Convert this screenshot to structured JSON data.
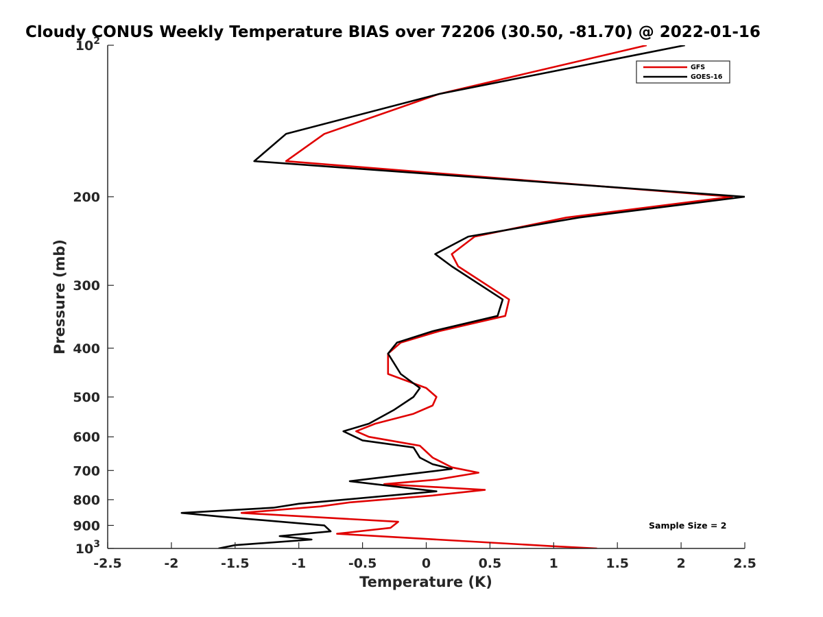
{
  "chart_data": {
    "type": "line",
    "title": "Cloudy CONUS Weekly Temperature BIAS over 72206 (30.50, -81.70) @ 2022-01-16",
    "xlabel": "Temperature (K)",
    "ylabel": "Pressure (mb)",
    "xlim": [
      -2.5,
      2.5
    ],
    "ylim": [
      100,
      1000
    ],
    "yscale": "log",
    "y_reversed": true,
    "x_ticks": [
      "-2.5",
      "-2",
      "-1.5",
      "-1",
      "-0.5",
      "0",
      "0.5",
      "1",
      "1.5",
      "2",
      "2.5"
    ],
    "y_ticks": [
      {
        "value": 100,
        "base": "10",
        "exp": "2"
      },
      {
        "value": 200,
        "label": "200"
      },
      {
        "value": 300,
        "label": "300"
      },
      {
        "value": 400,
        "label": "400"
      },
      {
        "value": 500,
        "label": "500"
      },
      {
        "value": 600,
        "label": "600"
      },
      {
        "value": 700,
        "label": "700"
      },
      {
        "value": 800,
        "label": "800"
      },
      {
        "value": 900,
        "label": "900"
      },
      {
        "value": 1000,
        "base": "10",
        "exp": "3"
      }
    ],
    "legend_position": "top-right",
    "annotation": "Sample Size = 2",
    "series": [
      {
        "name": "GFS",
        "color": "#e00000",
        "points": [
          [
            1.73,
            100
          ],
          [
            0.1,
            125
          ],
          [
            -0.8,
            150
          ],
          [
            -1.1,
            170
          ],
          [
            2.4,
            200
          ],
          [
            1.1,
            220
          ],
          [
            0.38,
            240
          ],
          [
            0.2,
            260
          ],
          [
            0.25,
            275
          ],
          [
            0.65,
            320
          ],
          [
            0.62,
            345
          ],
          [
            0.1,
            370
          ],
          [
            -0.2,
            390
          ],
          [
            -0.3,
            410
          ],
          [
            -0.3,
            450
          ],
          [
            0.0,
            480
          ],
          [
            0.08,
            500
          ],
          [
            0.05,
            520
          ],
          [
            -0.1,
            540
          ],
          [
            -0.4,
            565
          ],
          [
            -0.55,
            585
          ],
          [
            -0.45,
            600
          ],
          [
            -0.05,
            625
          ],
          [
            0.05,
            660
          ],
          [
            0.2,
            690
          ],
          [
            0.41,
            707
          ],
          [
            0.08,
            730
          ],
          [
            -0.33,
            745
          ],
          [
            0.46,
            765
          ],
          [
            0.05,
            785
          ],
          [
            -0.6,
            810
          ],
          [
            -0.83,
            825
          ],
          [
            -1.45,
            850
          ],
          [
            -0.22,
            885
          ],
          [
            -0.28,
            910
          ],
          [
            -0.7,
            935
          ],
          [
            1.0,
            990
          ],
          [
            1.34,
            1000
          ]
        ]
      },
      {
        "name": "GOES-16",
        "color": "#000000",
        "points": [
          [
            2.03,
            100
          ],
          [
            0.1,
            125
          ],
          [
            -1.1,
            150
          ],
          [
            -1.35,
            170
          ],
          [
            2.5,
            200
          ],
          [
            1.2,
            220
          ],
          [
            0.33,
            240
          ],
          [
            0.07,
            260
          ],
          [
            0.2,
            275
          ],
          [
            0.6,
            320
          ],
          [
            0.56,
            345
          ],
          [
            0.05,
            370
          ],
          [
            -0.23,
            390
          ],
          [
            -0.3,
            410
          ],
          [
            -0.2,
            450
          ],
          [
            -0.05,
            480
          ],
          [
            -0.1,
            500
          ],
          [
            -0.25,
            530
          ],
          [
            -0.45,
            565
          ],
          [
            -0.65,
            585
          ],
          [
            -0.5,
            610
          ],
          [
            -0.1,
            630
          ],
          [
            -0.05,
            660
          ],
          [
            0.05,
            680
          ],
          [
            0.2,
            695
          ],
          [
            -0.1,
            710
          ],
          [
            -0.6,
            735
          ],
          [
            0.08,
            770
          ],
          [
            -1.0,
            815
          ],
          [
            -1.2,
            830
          ],
          [
            -1.92,
            850
          ],
          [
            -1.6,
            865
          ],
          [
            -0.8,
            900
          ],
          [
            -0.75,
            925
          ],
          [
            -1.15,
            945
          ],
          [
            -0.9,
            960
          ],
          [
            -1.5,
            985
          ],
          [
            -1.63,
            1000
          ]
        ]
      }
    ]
  }
}
